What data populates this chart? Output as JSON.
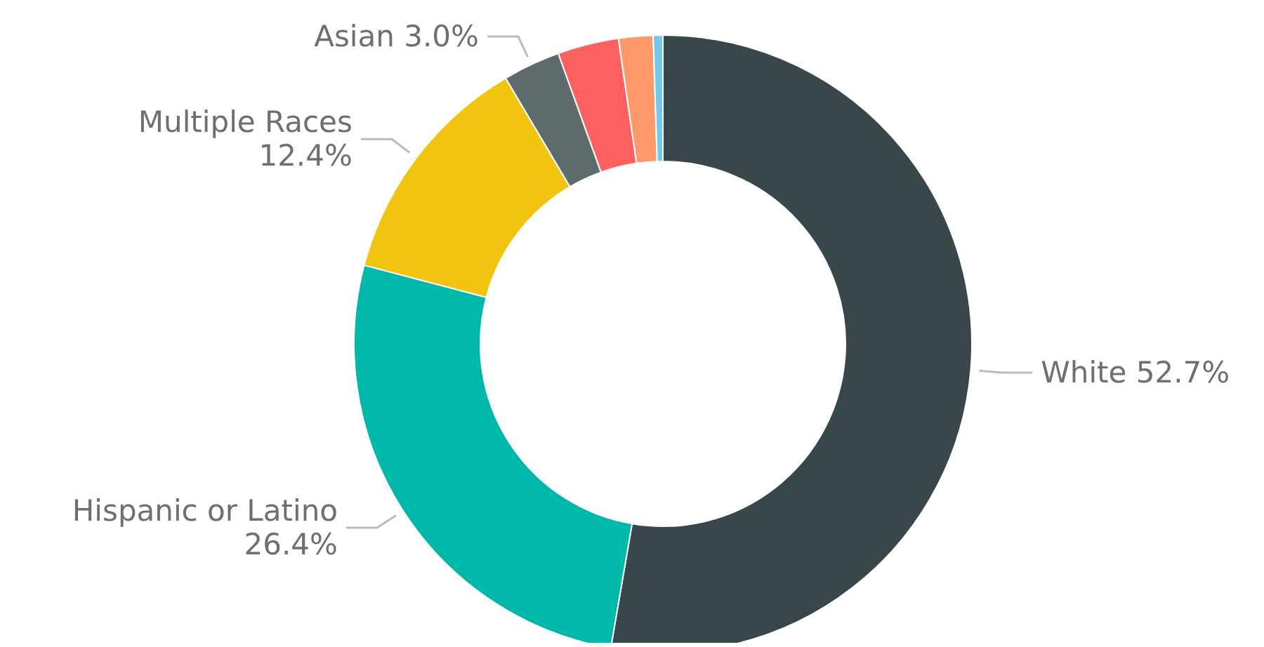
{
  "chart_data": {
    "type": "donut",
    "categories": [
      "White",
      "Hispanic or Latino",
      "Multiple Races",
      "Asian",
      null,
      null,
      null
    ],
    "values": [
      52.7,
      26.4,
      12.4,
      3.0,
      3.2,
      1.8,
      0.5
    ],
    "value_labels": [
      "52.7%",
      "26.4%",
      "12.4%",
      "3.0%",
      null,
      null,
      null
    ],
    "colors": [
      "#37474a",
      "#00b8a9",
      "#f1c40f",
      "#5d6b6c",
      "#fe5f5f",
      "#fe9a6a",
      "#74c7e8"
    ]
  }
}
